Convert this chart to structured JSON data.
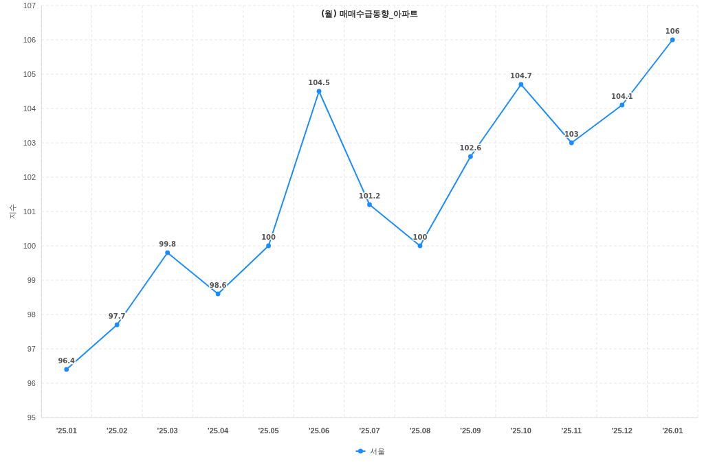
{
  "chart_data": {
    "type": "line",
    "title": "(월) 매매수급동향_아파트",
    "ylabel": "지수",
    "categories": [
      "'25.01",
      "'25.02",
      "'25.03",
      "'25.04",
      "'25.05",
      "'25.06",
      "'25.07",
      "'25.08",
      "'25.09",
      "'25.10",
      "'25.11",
      "'25.12",
      "'26.01"
    ],
    "series": [
      {
        "name": "서울",
        "color": "#1a8cff",
        "values": [
          96.4,
          97.7,
          99.8,
          98.6,
          100,
          104.5,
          101.2,
          100,
          102.6,
          104.7,
          103,
          104.1,
          106
        ]
      }
    ],
    "ylim": [
      95,
      107
    ],
    "yticks": [
      95,
      96,
      97,
      98,
      99,
      100,
      101,
      102,
      103,
      104,
      105,
      106,
      107
    ],
    "grid": true,
    "legend": "bottom",
    "data_labels": true,
    "marker": "circle",
    "line_style": "solid"
  }
}
